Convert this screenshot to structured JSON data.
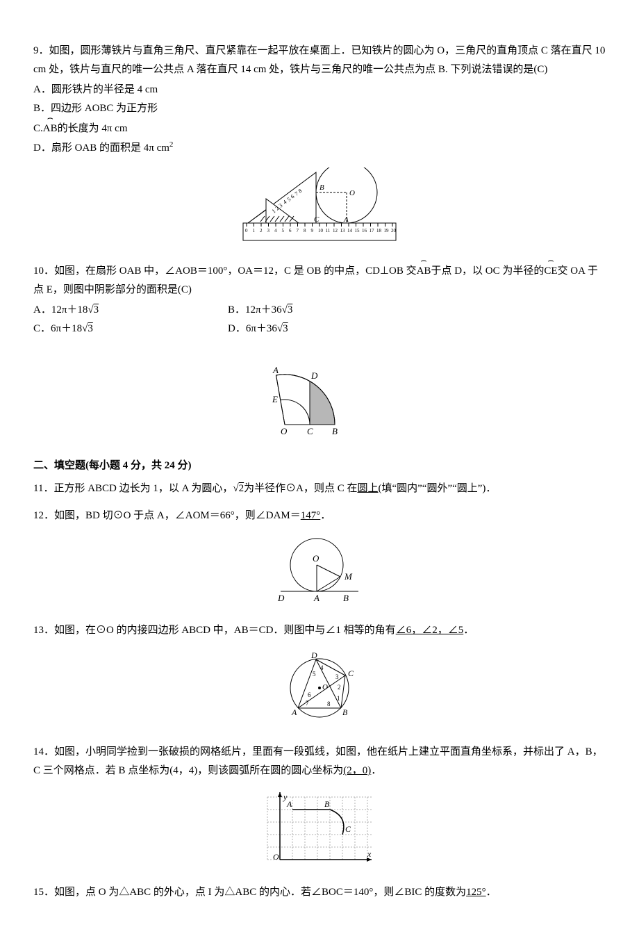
{
  "problems": {
    "p9": {
      "num": "9",
      "text_prefix": "．如图，圆形薄铁片与直角三角尺、直尺紧靠在一起平放在桌面上．已知铁片的圆心为 O，三角尺的直角顶点 C 落在直尺 10  cm 处，铁片与直尺的唯一公共点 A 落在直尺 14  cm 处，铁片与三角尺的唯一公共点为点 B. 下列说法错误的是(C)",
      "opt_a": "A．圆形铁片的半径是 4 cm",
      "opt_b": "B．四边形 AOBC 为正方形",
      "opt_c_pre": "C.",
      "opt_c_arc": "AB",
      "opt_c_post": "的长度为 4π  cm",
      "opt_d": "D．扇形 OAB 的面积是 4π  cm",
      "opt_d_sup": "2",
      "figure": {
        "ruler_color": "#000000",
        "ticks": [
          0,
          1,
          2,
          3,
          4,
          5,
          6,
          7,
          8,
          9,
          10,
          11,
          12,
          13,
          14,
          15,
          16,
          17,
          18,
          19,
          20
        ],
        "labels": {
          "B": "B",
          "O": "O",
          "C": "C",
          "A": "A"
        },
        "fontsize": 9
      }
    },
    "p10": {
      "num": "10",
      "text_prefix": "．如图，在扇形 OAB 中，∠AOB＝100°，OA＝12，C 是 OB 的中点，CD⊥OB 交",
      "arc1": "AB",
      "text_mid": "于点 D，以 OC 为半径的",
      "arc2": "CE",
      "text_end": "交 OA 于点 E，则图中阴影部分的面积是(C)",
      "opt_a_pre": "A．12π＋18",
      "opt_a_root": "3",
      "opt_b_pre": "B．12π＋36",
      "opt_b_root": "3",
      "opt_c_pre": "C．6π＋18",
      "opt_c_root": "3",
      "opt_d_pre": "D．6π＋36",
      "opt_d_root": "3",
      "figure": {
        "labels": {
          "A": "A",
          "D": "D",
          "E": "E",
          "O": "O",
          "C": "C",
          "B": "B"
        },
        "shaded_color": "#b7b7b7",
        "line_color": "#000000",
        "fontsize": 13
      }
    },
    "section2": {
      "title": "二、填空题(每小题 4 分，共 24 分)"
    },
    "p11": {
      "num": "11",
      "text_pre": "．正方形 ABCD 边长为 1，以 A 为圆心，",
      "root": "2",
      "text_mid": "为半径作⊙A，则点 C 在",
      "answer": "圆上",
      "text_end": "(填“圆内”“圆外”“圆上”)．"
    },
    "p12": {
      "num": "12",
      "text": "．如图，BD 切⊙O 于点 A，∠AOM＝66°，则∠DAM＝",
      "answer": "147°",
      "text_end": "．",
      "figure": {
        "labels": {
          "O": "O",
          "M": "M",
          "D": "D",
          "A": "A",
          "B": "B"
        },
        "line_color": "#000000",
        "fontsize": 13
      }
    },
    "p13": {
      "num": "13",
      "text": "．如图，在⊙O 的内接四边形 ABCD 中，AB＝CD．则图中与∠1 相等的角有",
      "answer": "∠6，∠2，∠5",
      "text_end": "．",
      "figure": {
        "labels": {
          "A": "A",
          "B": "B",
          "C": "C",
          "D": "D",
          "O": "O"
        },
        "nums": [
          "1",
          "2",
          "3",
          "4",
          "5",
          "6",
          "7",
          "8"
        ],
        "line_color": "#000000",
        "fontsize": 12
      }
    },
    "p14": {
      "num": "14",
      "text": "．如图，小明同学捡到一张破损的网格纸片，里面有一段弧线，如图，他在纸片上建立平面直角坐标系，并标出了 A，B，C 三个网格点．若 B 点坐标为(4，4)，则该圆弧所在圆的圆心坐标为",
      "answer": "(2，0)",
      "text_end": "．",
      "figure": {
        "labels": {
          "A": "A",
          "B": "B",
          "C": "C",
          "O": "O",
          "x": "x",
          "y": "y"
        },
        "grid_color": "#b0b0b0",
        "line_color": "#000000",
        "fontsize": 12
      }
    },
    "p15": {
      "num": "15",
      "text": "．如图，点 O 为△ABC 的外心，点 I 为△ABC 的内心．若∠BOC＝140°，则∠BIC 的度数为",
      "answer": "125°",
      "text_end": "．"
    }
  }
}
